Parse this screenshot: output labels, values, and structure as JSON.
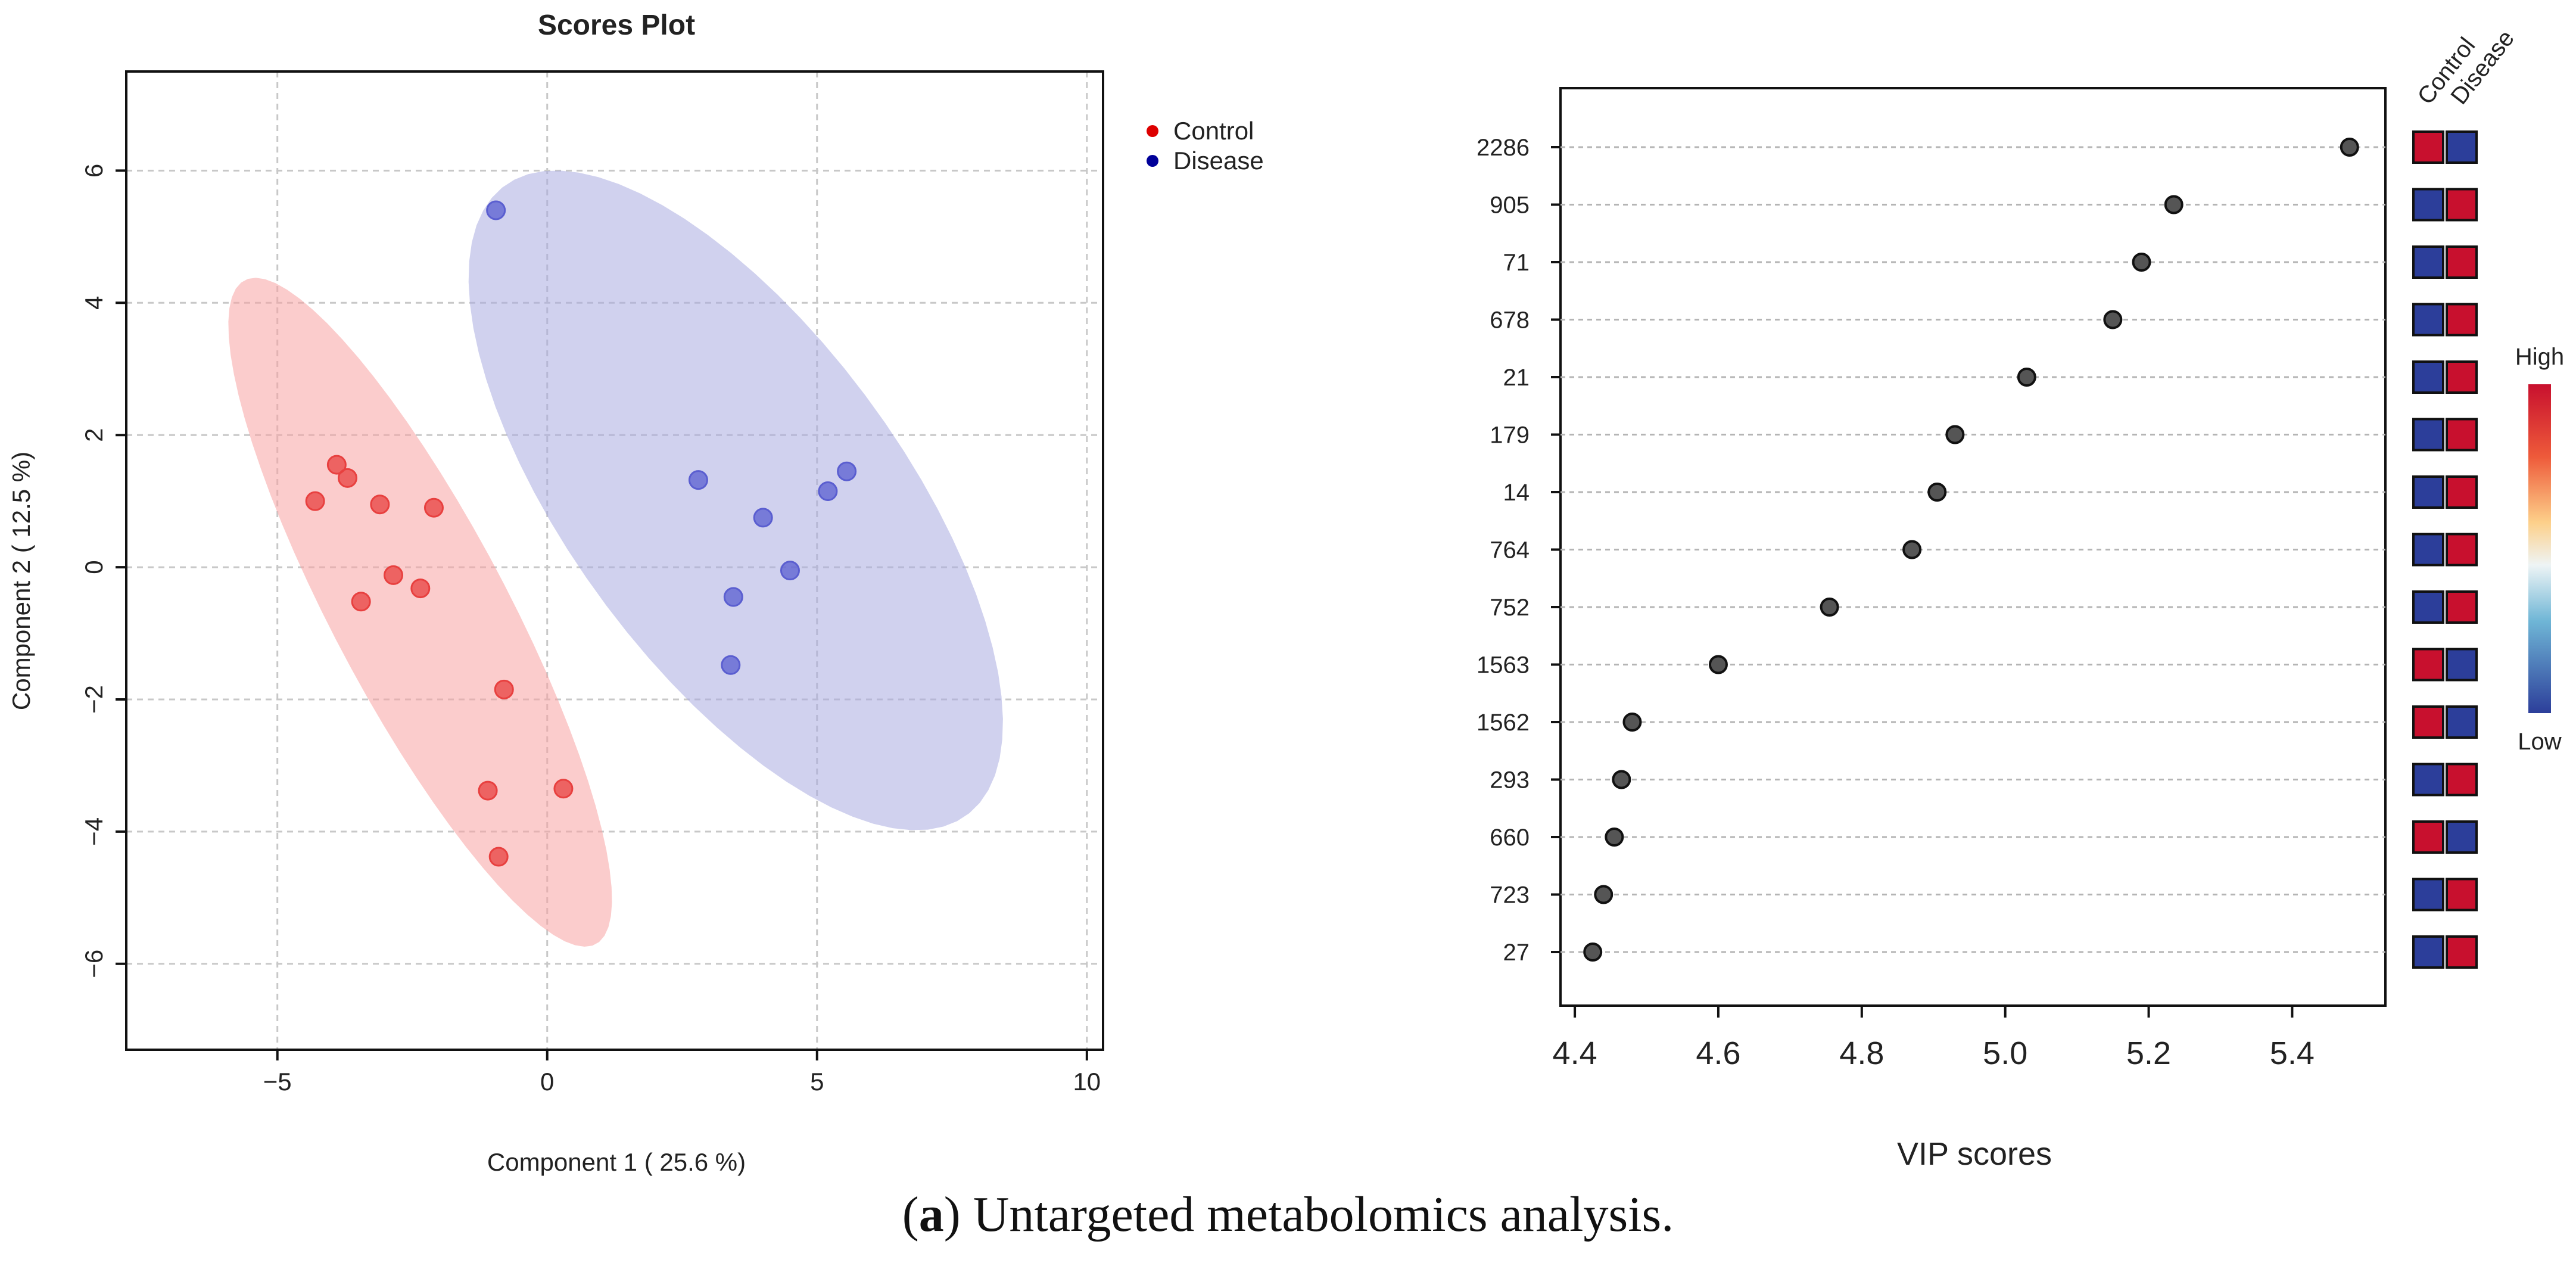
{
  "caption": {
    "label": "a",
    "text": ") Untargeted metabolomics analysis.",
    "open_paren": "("
  },
  "chart_data": [
    {
      "type": "scatter",
      "title": "Scores Plot",
      "xlabel": "Component 1 ( 25.6 %)",
      "ylabel": "Component 2 ( 12.5 %)",
      "xlim": [
        -7.8,
        10.3
      ],
      "ylim": [
        -7.3,
        7.5
      ],
      "xticks": [
        -5,
        0,
        5,
        10
      ],
      "xtick_labels": [
        "−5",
        "0",
        "5",
        "10"
      ],
      "yticks": [
        -6,
        -4,
        -2,
        0,
        2,
        4,
        6
      ],
      "ytick_labels": [
        "−6",
        "−4",
        "−2",
        "0",
        "2",
        "4",
        "6"
      ],
      "grid": true,
      "legend_position": "top-right, outside plot",
      "series": [
        {
          "name": "Control",
          "color": "#e8403f",
          "legend_color": "#dd0000",
          "ellipse_color": "#f8a2a2",
          "points": [
            [
              -3.9,
              1.55
            ],
            [
              -3.7,
              1.35
            ],
            [
              -4.3,
              1.0
            ],
            [
              -3.1,
              0.95
            ],
            [
              -2.1,
              0.9
            ],
            [
              -2.85,
              -0.12
            ],
            [
              -2.35,
              -0.32
            ],
            [
              -3.45,
              -0.52
            ],
            [
              -0.8,
              -1.85
            ],
            [
              -1.1,
              -3.38
            ],
            [
              0.3,
              -3.35
            ],
            [
              -0.9,
              -4.38
            ]
          ]
        },
        {
          "name": "Disease",
          "color": "#5a5ed0",
          "legend_color": "#000099",
          "ellipse_color": "#a9abe0",
          "points": [
            [
              -0.95,
              5.4
            ],
            [
              2.8,
              1.32
            ],
            [
              5.55,
              1.45
            ],
            [
              5.2,
              1.15
            ],
            [
              4.0,
              0.75
            ],
            [
              4.5,
              -0.05
            ],
            [
              3.45,
              -0.45
            ],
            [
              3.4,
              -1.48
            ]
          ]
        }
      ]
    },
    {
      "type": "dot",
      "title": "",
      "xlabel": "VIP scores",
      "ylabel": "",
      "xlim": [
        4.38,
        5.53
      ],
      "xticks": [
        4.4,
        4.6,
        4.8,
        5.0,
        5.2,
        5.4
      ],
      "xtick_labels": [
        "4.4",
        "4.6",
        "4.8",
        "5.0",
        "5.2",
        "5.4"
      ],
      "grid": true,
      "categories": [
        "2286",
        "905",
        "71",
        "678",
        "21",
        "179",
        "14",
        "764",
        "752",
        "1563",
        "1562",
        "293",
        "660",
        "723",
        "27"
      ],
      "values": [
        5.48,
        5.235,
        5.19,
        5.15,
        5.03,
        4.93,
        4.905,
        4.87,
        4.755,
        4.6,
        4.48,
        4.465,
        4.455,
        4.44,
        4.425
      ],
      "heatmap_columns": [
        "Control",
        "Disease"
      ],
      "heatmap": [
        [
          "High",
          "Low"
        ],
        [
          "Low",
          "High"
        ],
        [
          "Low",
          "High"
        ],
        [
          "Low",
          "High"
        ],
        [
          "Low",
          "High"
        ],
        [
          "Low",
          "High"
        ],
        [
          "Low",
          "High"
        ],
        [
          "Low",
          "High"
        ],
        [
          "Low",
          "High"
        ],
        [
          "High",
          "Low"
        ],
        [
          "High",
          "Low"
        ],
        [
          "Low",
          "High"
        ],
        [
          "High",
          "Low"
        ],
        [
          "Low",
          "High"
        ],
        [
          "Low",
          "High"
        ]
      ],
      "colorbar": {
        "high_label": "High",
        "low_label": "Low",
        "high_color": "#c8102e",
        "low_color": "#2c3e9a"
      },
      "point_color": "#555555"
    }
  ]
}
